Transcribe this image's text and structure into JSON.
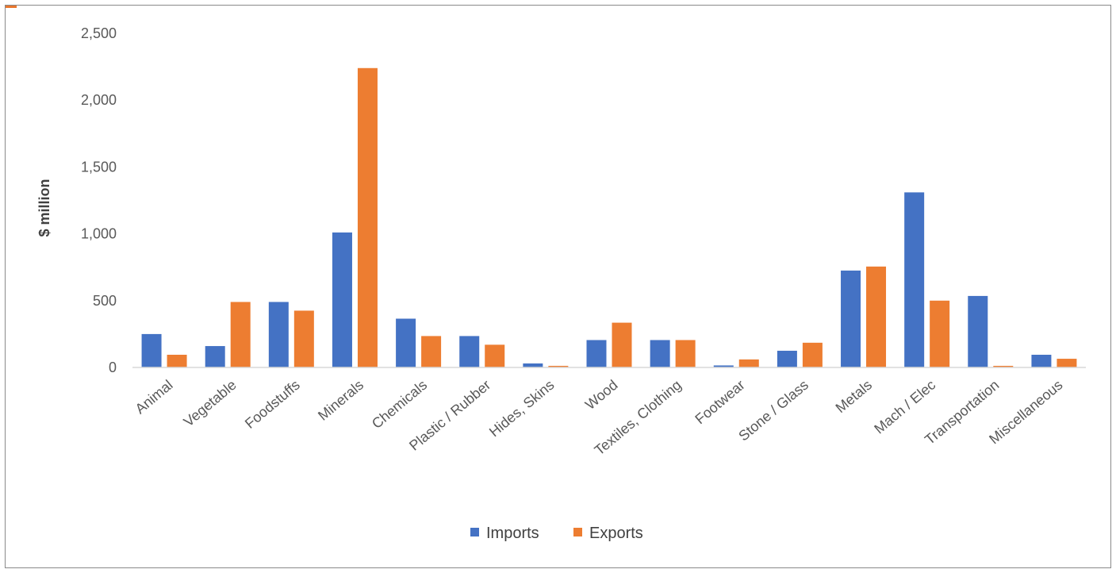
{
  "chart_data": {
    "type": "bar",
    "title": "",
    "xlabel": "",
    "ylabel": "$ million",
    "ylim": [
      0,
      2500
    ],
    "yticks": [
      0,
      500,
      1000,
      1500,
      2000,
      2500
    ],
    "ytick_labels": [
      "0",
      "500",
      "1,000",
      "1,500",
      "2,000",
      "2,500"
    ],
    "grid": false,
    "legend_position": "bottom",
    "categories": [
      "Animal",
      "Vegetable",
      "Foodstuffs",
      "Minerals",
      "Chemicals",
      "Plastic / Rubber",
      "Hides, Skins",
      "Wood",
      "Textiles, Clothing",
      "Footwear",
      "Stone / Glass",
      "Metals",
      "Mach / Elec",
      "Transportation",
      "Miscellaneous"
    ],
    "series": [
      {
        "name": "Imports",
        "color": "#4472c4",
        "values": [
          250,
          160,
          490,
          1010,
          365,
          235,
          30,
          205,
          205,
          15,
          125,
          725,
          1310,
          535,
          95
        ]
      },
      {
        "name": "Exports",
        "color": "#ed7d31",
        "values": [
          95,
          490,
          425,
          2240,
          235,
          170,
          12,
          335,
          205,
          60,
          185,
          755,
          500,
          12,
          65
        ]
      }
    ]
  }
}
